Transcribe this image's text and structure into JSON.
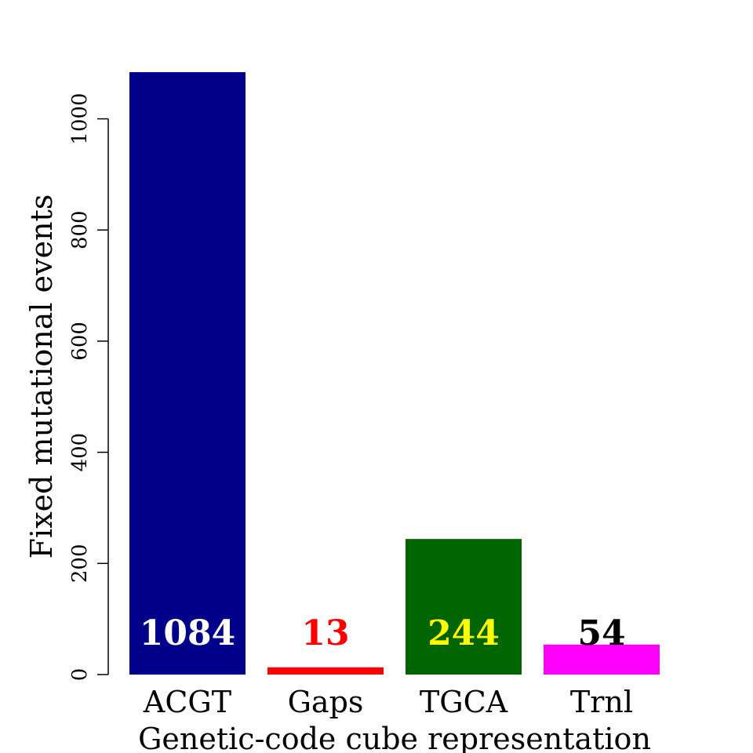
{
  "chart_data": {
    "type": "bar",
    "categories": [
      "ACGT",
      "Gaps",
      "TGCA",
      "Trnl"
    ],
    "values": [
      1084,
      13,
      244,
      54
    ],
    "value_labels": [
      "1084",
      "13",
      "244",
      "54"
    ],
    "bar_colors": [
      "#00008B",
      "#FF0000",
      "#006400",
      "#FF00FF"
    ],
    "label_colors": [
      "#FFFFFF",
      "#FF0000",
      "#FFFF00",
      "#000000"
    ],
    "title": "",
    "xlabel": "Genetic-code cube representation",
    "ylabel": "Fixed mutational events",
    "ylim": [
      0,
      1084
    ],
    "yticks": [
      0,
      200,
      400,
      600,
      800,
      1000
    ],
    "ytick_labels": [
      "0",
      "200",
      "400",
      "600",
      "800",
      "1000"
    ],
    "grid": false,
    "legend": "none"
  }
}
